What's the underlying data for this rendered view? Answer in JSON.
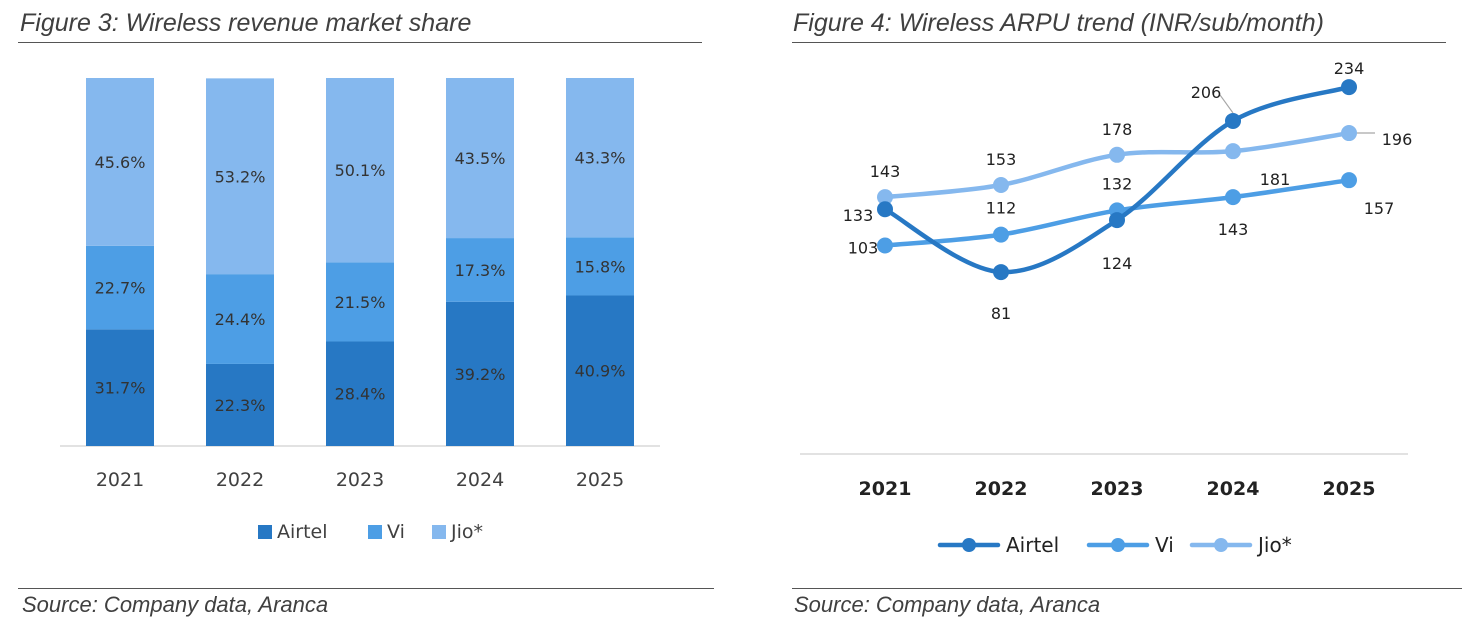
{
  "colors": {
    "airtel": "#2778c4",
    "vi": "#4d9ee5",
    "jio": "#85b8ee",
    "axis": "#d9d9d9",
    "label": "#333333"
  },
  "figures": [
    {
      "title": "Figure 3: Wireless revenue market share",
      "source": "Source: Company data, Aranca",
      "chart_data": {
        "type": "bar",
        "stacked": true,
        "percent": true,
        "categories": [
          "2021",
          "2022",
          "2023",
          "2024",
          "2025"
        ],
        "series": [
          {
            "name": "Airtel",
            "values": [
              31.7,
              22.3,
              28.4,
              39.2,
              40.9
            ],
            "labels": [
              "31.7%",
              "22.3%",
              "28.4%",
              "39.2%",
              "40.9%"
            ]
          },
          {
            "name": "Vi",
            "values": [
              22.7,
              24.4,
              21.5,
              17.3,
              15.8
            ],
            "labels": [
              "22.7%",
              "24.4%",
              "21.5%",
              "17.3%",
              "15.8%"
            ]
          },
          {
            "name": "Jio*",
            "values": [
              45.6,
              53.2,
              50.1,
              43.5,
              43.3
            ],
            "labels": [
              "45.6%",
              "53.2%",
              "50.1%",
              "43.5%",
              "43.3%"
            ]
          }
        ],
        "ylim": [
          0,
          100
        ],
        "legend": "bottom",
        "grid": false
      }
    },
    {
      "title": "Figure 4: Wireless ARPU trend (INR/sub/month)",
      "source": "Source: Company data, Aranca",
      "chart_data": {
        "type": "line",
        "smooth": true,
        "markers": true,
        "categories": [
          "2021",
          "2022",
          "2023",
          "2024",
          "2025"
        ],
        "series": [
          {
            "name": "Airtel",
            "values": [
              133,
              81,
              124,
              206,
              234
            ],
            "labels": [
              "133",
              "81",
              "124",
              "206",
              "234"
            ]
          },
          {
            "name": "Vi",
            "values": [
              103,
              112,
              132,
              143,
              157
            ],
            "labels": [
              "103",
              "112",
              "132",
              "143",
              "157"
            ]
          },
          {
            "name": "Jio*",
            "values": [
              143,
              153,
              178,
              181,
              196
            ],
            "labels": [
              "143",
              "153",
              "178",
              "181",
              "196"
            ]
          }
        ],
        "legend": "bottom",
        "grid": false
      }
    }
  ]
}
